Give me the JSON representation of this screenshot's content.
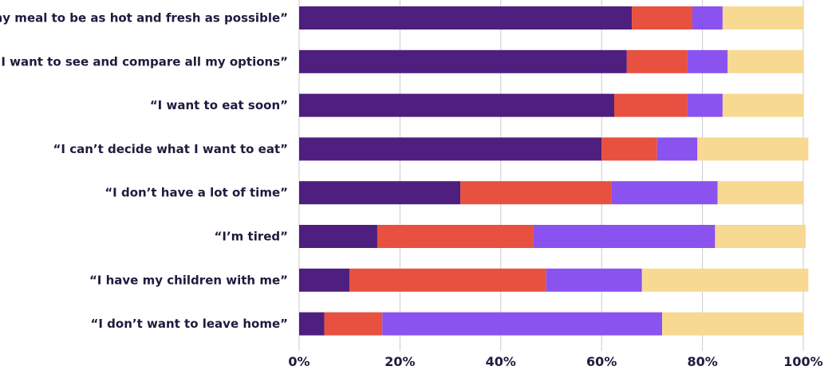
{
  "chart_data": {
    "type": "bar",
    "orientation": "horizontal",
    "stacked": true,
    "categories": [
      "“I want my meal to be as hot and fresh as possible”",
      "“I want to see and compare all my options”",
      "“I want to eat soon”",
      "“I can’t decide what I want to eat”",
      "“I don’t have a lot of time”",
      "“I’m tired”",
      "“I have my children with me”",
      "“I don’t want to leave home”"
    ],
    "series": [
      {
        "color": "#4e1f7e",
        "values": [
          66,
          65,
          62.5,
          60,
          32,
          15.5,
          10,
          5
        ]
      },
      {
        "color": "#e8503f",
        "values": [
          12,
          12,
          14.5,
          11,
          30,
          31,
          39,
          11.5
        ]
      },
      {
        "color": "#8a52ef",
        "values": [
          6,
          8,
          7,
          8,
          21,
          36,
          19,
          55.5
        ]
      },
      {
        "color": "#f8d992",
        "values": [
          16,
          15,
          16,
          22,
          17,
          18,
          33,
          28
        ]
      }
    ],
    "xlim": [
      0,
      100
    ],
    "x_ticks": [
      "0%",
      "20%",
      "40%",
      "60%",
      "80%",
      "100%"
    ],
    "grid": true,
    "legend": "none"
  }
}
